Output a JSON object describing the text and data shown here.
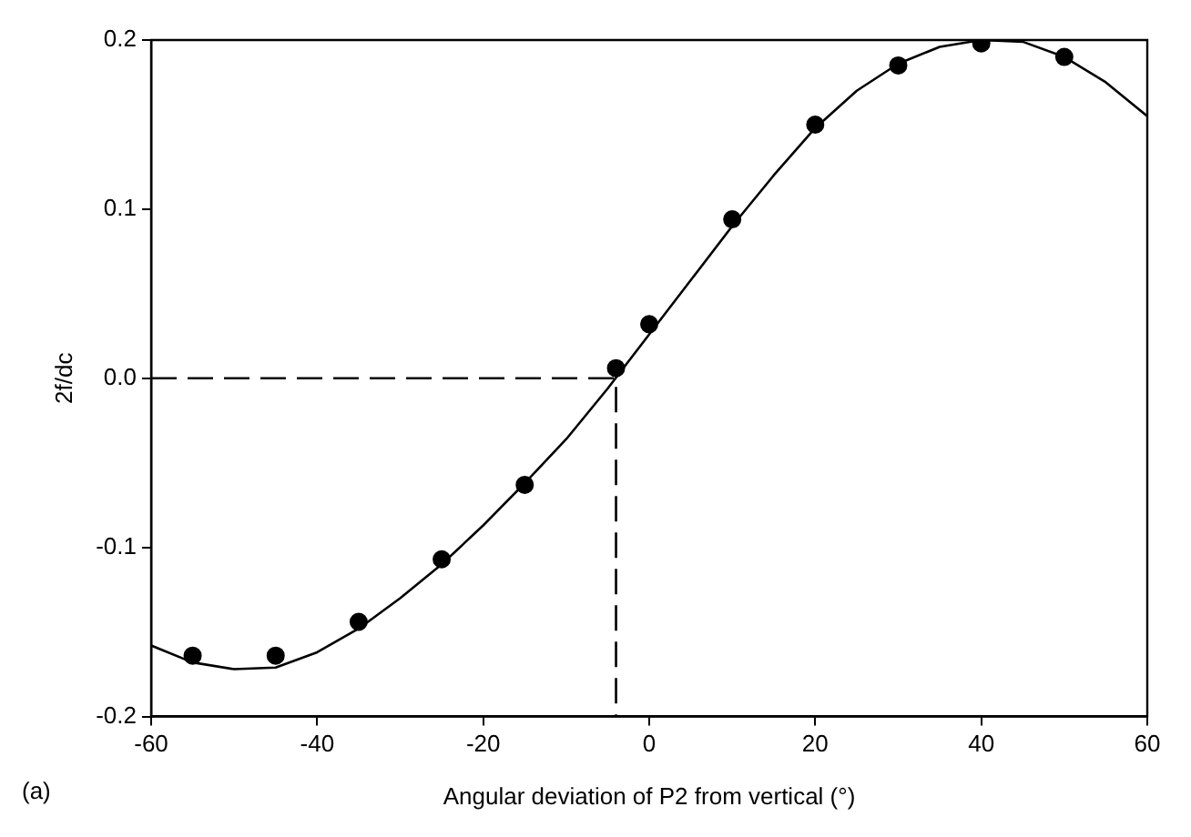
{
  "chart_data": {
    "type": "scatter",
    "xlabel": "Angular deviation of P2 from vertical (°)",
    "ylabel": "2f/dc",
    "annotations": [
      "(a)"
    ],
    "xlim": [
      -60,
      60
    ],
    "ylim": [
      -0.2,
      0.2
    ],
    "xticks": [
      -60,
      -40,
      -20,
      0,
      20,
      40,
      60
    ],
    "yticks": [
      -0.2,
      -0.1,
      {
        "value": 0,
        "label": "0.0"
      },
      0.1,
      0.2
    ],
    "marker": "circle",
    "series": [
      {
        "type": "scatter",
        "color": "#000000",
        "x": [
          -55,
          -45,
          -35,
          -25,
          -15,
          -4,
          0,
          10,
          20,
          30,
          40,
          50
        ],
        "values": [
          -0.164,
          -0.164,
          -0.144,
          -0.107,
          -0.063,
          0.006,
          0.032,
          0.094,
          0.15,
          0.185,
          0.198,
          0.19
        ]
      },
      {
        "type": "line",
        "color": "#000000",
        "marker": "none",
        "line_style": "solid",
        "x": [
          -60,
          -55,
          -50,
          -45,
          -40,
          -35,
          -30,
          -25,
          -20,
          -15,
          -10,
          -5,
          0,
          5,
          10,
          15,
          20,
          25,
          30,
          35,
          40,
          45,
          50,
          55,
          60
        ],
        "values": [
          -0.158,
          -0.168,
          -0.172,
          -0.171,
          -0.162,
          -0.148,
          -0.13,
          -0.11,
          -0.087,
          -0.062,
          -0.036,
          -0.006,
          0.026,
          0.058,
          0.09,
          0.12,
          0.148,
          0.17,
          0.186,
          0.196,
          0.2,
          0.199,
          0.19,
          0.175,
          0.155
        ]
      },
      {
        "type": "line",
        "color": "#000000",
        "marker": "none",
        "line_style": "dashed",
        "x": [
          -60,
          -4,
          -4
        ],
        "values": [
          0,
          0,
          -0.2
        ]
      }
    ]
  }
}
